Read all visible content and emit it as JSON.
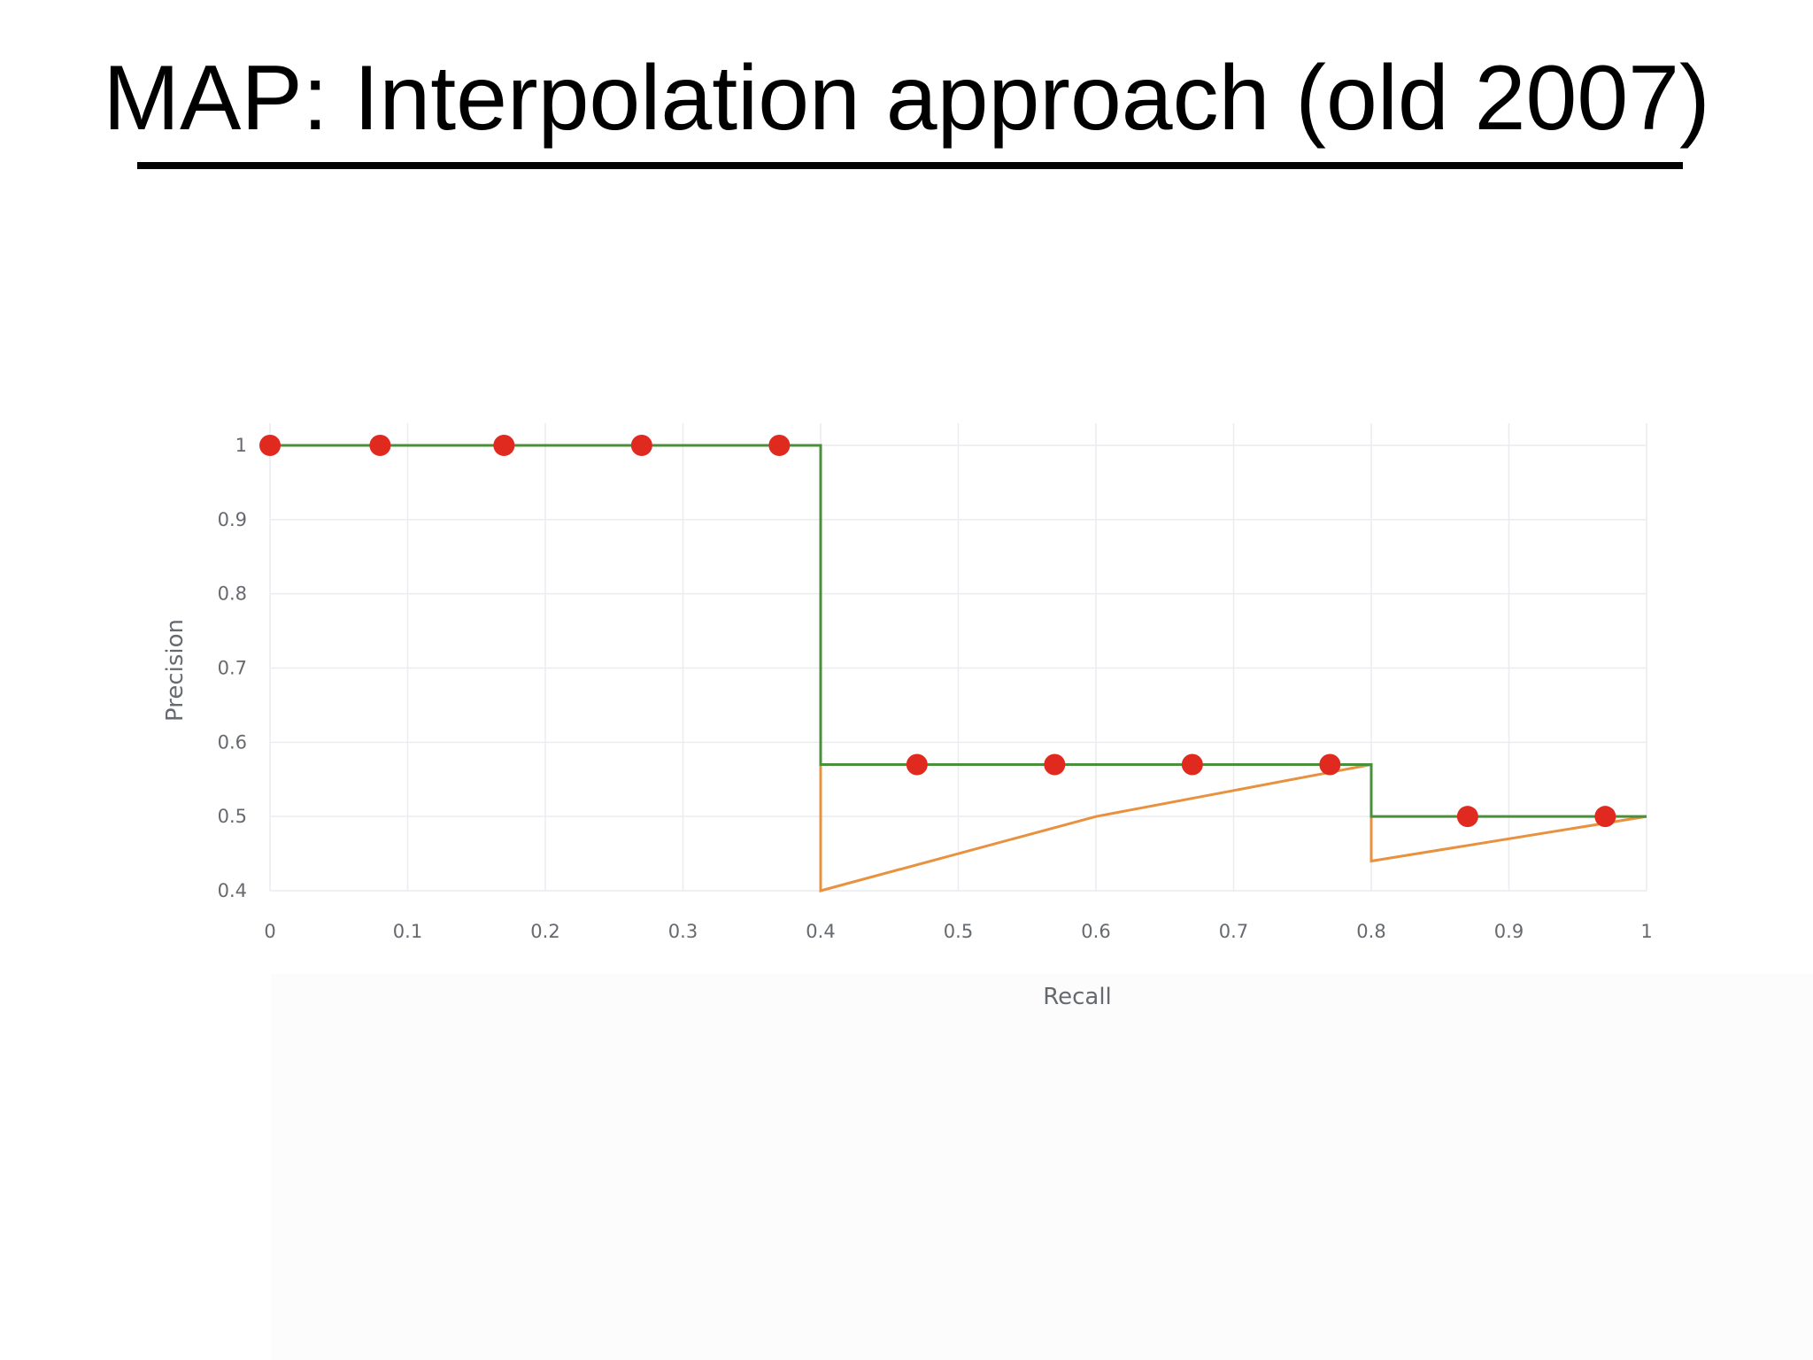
{
  "slide": {
    "title": "MAP: Interpolation approach (old 2007)"
  },
  "colors": {
    "interpolated": "#4a8f3a",
    "precision": "#e8913e",
    "points": "#e0291f",
    "grid": "#ececf0"
  },
  "chart_data": {
    "type": "line",
    "xlabel": "Recall",
    "ylabel": "Precision",
    "xlim": [
      0,
      1
    ],
    "ylim": [
      0.4,
      1
    ],
    "x_ticks": [
      "0",
      "0.1",
      "0.2",
      "0.3",
      "0.4",
      "0.5",
      "0.6",
      "0.7",
      "0.8",
      "0.9",
      "1"
    ],
    "y_ticks": [
      "0.4",
      "0.5",
      "0.6",
      "0.7",
      "0.8",
      "0.9",
      "1"
    ],
    "grid": true,
    "series": [
      {
        "style": "step",
        "color_key": "interpolated",
        "x": [
          0,
          0.4,
          0.4,
          0.8,
          0.8,
          1.0
        ],
        "y": [
          1.0,
          1.0,
          0.57,
          0.57,
          0.5,
          0.5
        ]
      },
      {
        "style": "line",
        "color_key": "precision",
        "x": [
          0.4,
          0.4,
          0.6,
          0.8,
          0.8,
          1.0
        ],
        "y": [
          1.0,
          0.4,
          0.5,
          0.57,
          0.44,
          0.5
        ]
      },
      {
        "style": "markers",
        "color_key": "points",
        "x": [
          0,
          0.08,
          0.17,
          0.27,
          0.37,
          0.47,
          0.57,
          0.67,
          0.77,
          0.87,
          0.97
        ],
        "y": [
          1.0,
          1.0,
          1.0,
          1.0,
          1.0,
          0.57,
          0.57,
          0.57,
          0.57,
          0.5,
          0.5
        ]
      }
    ]
  }
}
